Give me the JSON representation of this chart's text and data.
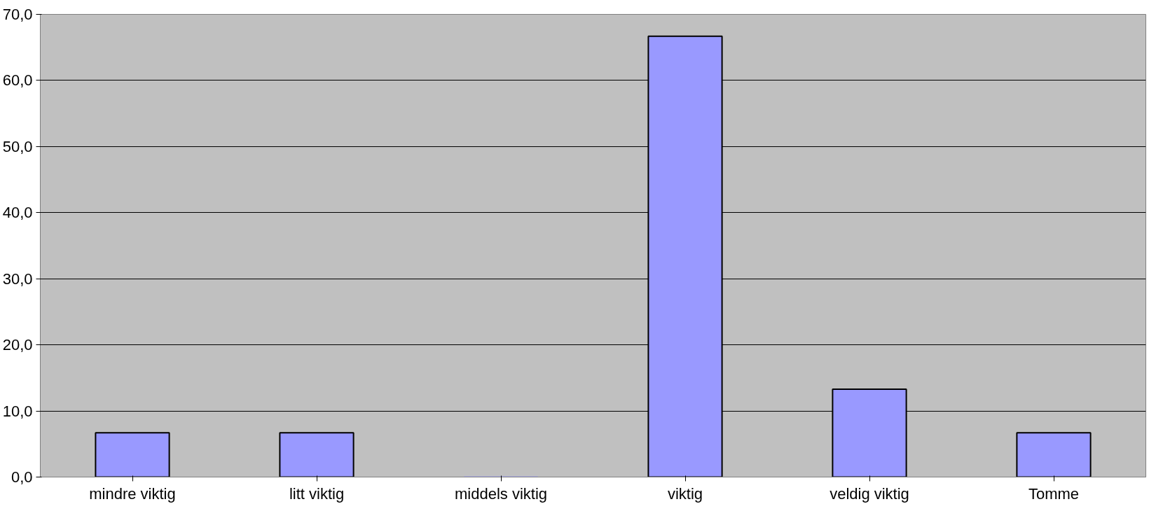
{
  "chart_data": {
    "type": "bar",
    "categories": [
      "mindre viktig",
      "litt viktig",
      "middels viktig",
      "viktig",
      "veldig viktig",
      "Tomme"
    ],
    "values": [
      6.7,
      6.7,
      0,
      66.7,
      13.3,
      6.7
    ],
    "color": "#9999ff",
    "ylim": [
      0,
      70
    ],
    "yticks": [
      {
        "value": 0,
        "label": "0,0"
      },
      {
        "value": 10,
        "label": "10,0"
      },
      {
        "value": 20,
        "label": "20,0"
      },
      {
        "value": 30,
        "label": "30,0"
      },
      {
        "value": 40,
        "label": "40,0"
      },
      {
        "value": 50,
        "label": "50,0"
      },
      {
        "value": 60,
        "label": "60,0"
      },
      {
        "value": 70,
        "label": "70,0"
      }
    ],
    "grid": "y"
  }
}
